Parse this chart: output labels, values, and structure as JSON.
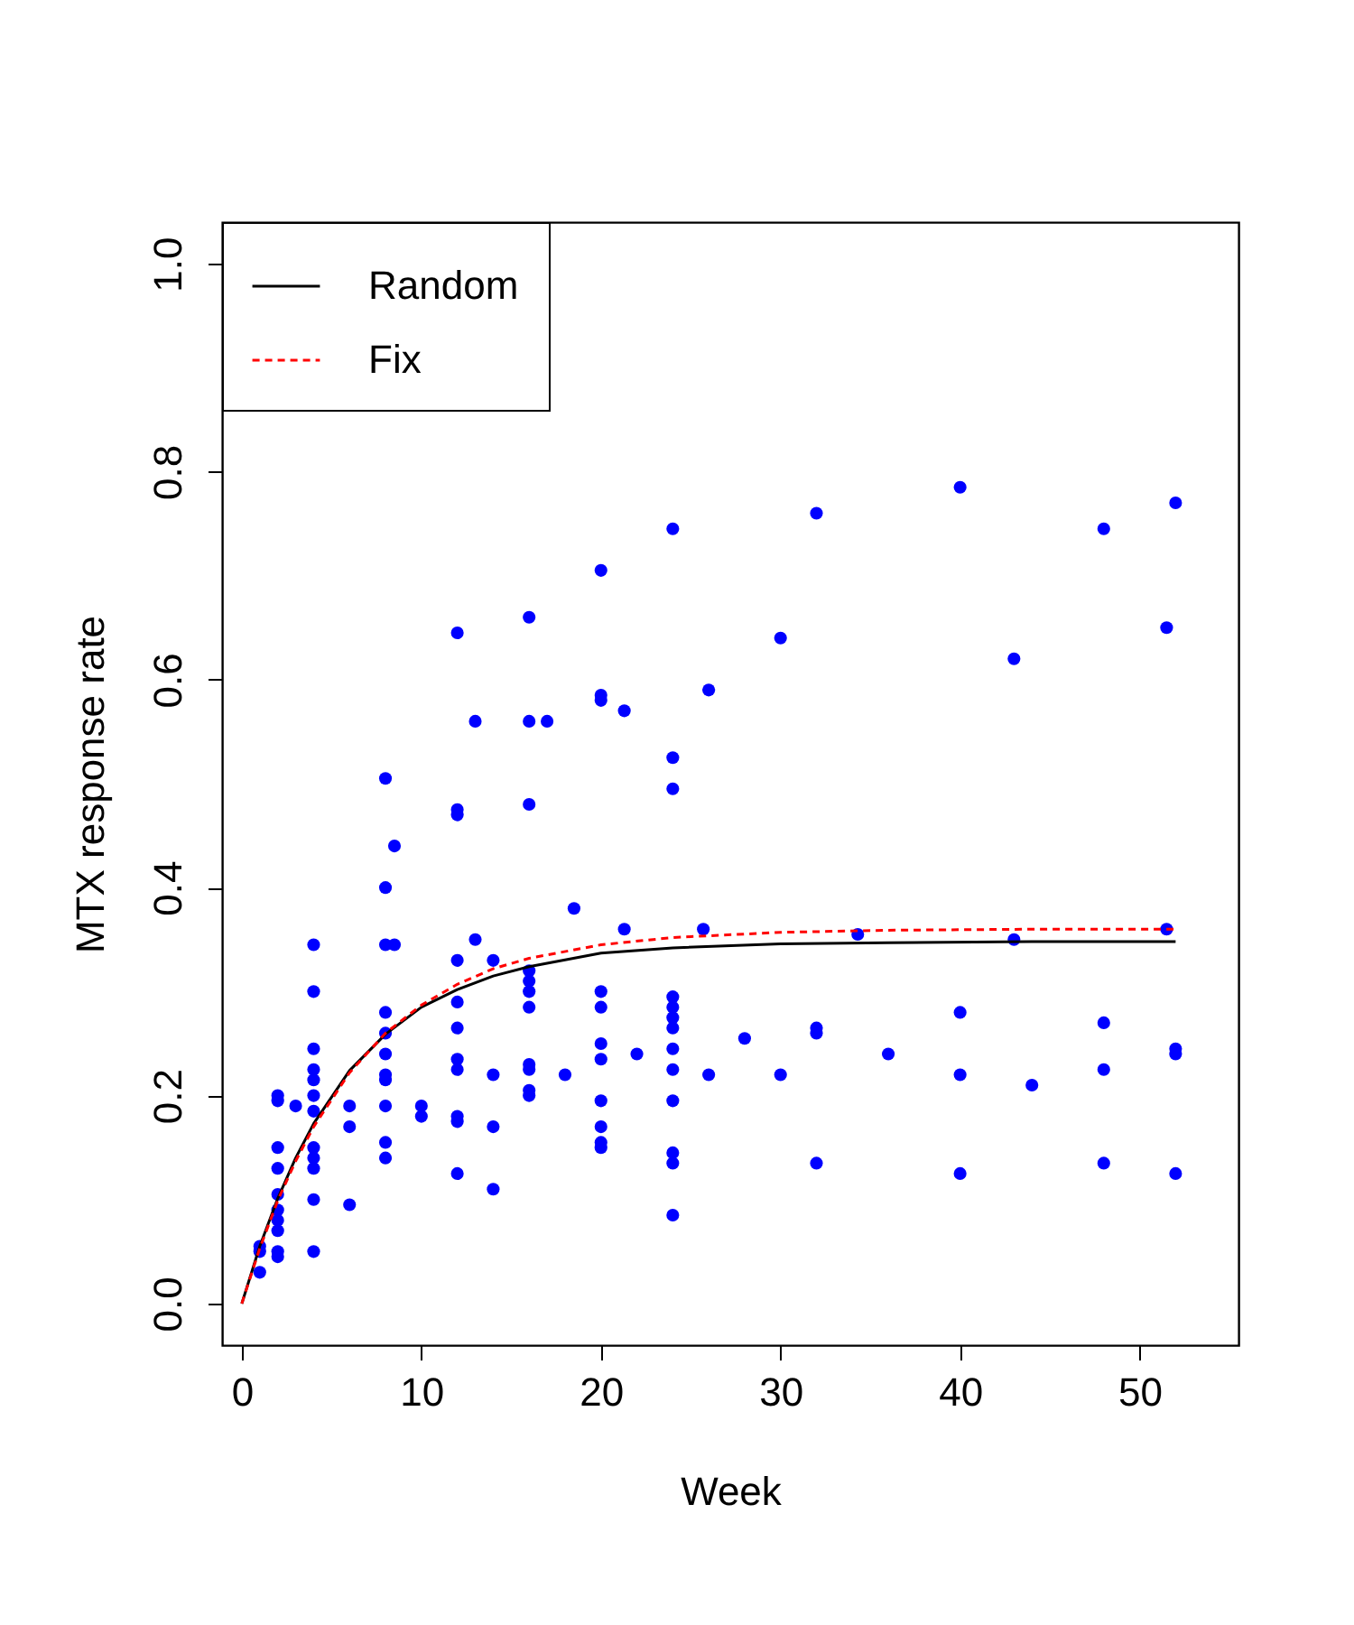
{
  "chart_data": {
    "type": "scatter",
    "xlabel": "Week",
    "ylabel": "MTX response rate",
    "xlim": [
      -1.1,
      55.5
    ],
    "ylim": [
      -0.04,
      1.04
    ],
    "xticks": [
      0,
      10,
      20,
      30,
      40,
      50
    ],
    "yticks": [
      {
        "value": 0,
        "label": "0.0"
      },
      {
        "value": 0.2,
        "label": "0.2"
      },
      {
        "value": 0.4,
        "label": "0.4"
      },
      {
        "value": 0.6,
        "label": "0.6"
      },
      {
        "value": 0.8,
        "label": "0.8"
      },
      {
        "value": 1,
        "label": "1.0"
      }
    ],
    "grid": false,
    "legend": "top left",
    "series": [
      {
        "marker": "circle",
        "color": "#0000ff",
        "x": [
          1,
          1,
          1,
          2,
          2,
          2,
          2,
          2,
          2,
          2,
          2,
          2,
          2,
          3,
          4,
          4,
          4,
          4,
          4,
          4,
          4,
          4,
          4,
          4,
          4,
          4,
          6,
          6,
          6,
          8,
          8,
          8,
          8,
          8,
          8,
          8,
          8,
          8,
          8,
          8,
          8.5,
          8.5,
          10,
          10,
          12,
          12,
          12,
          12,
          12,
          12,
          12,
          12,
          12,
          12,
          12,
          13,
          13,
          14,
          14,
          14,
          14,
          16,
          16,
          16,
          16,
          16,
          16,
          16,
          16,
          16,
          16,
          16,
          17,
          18,
          18.5,
          20,
          20,
          20,
          20,
          20,
          20,
          20,
          20,
          20,
          20,
          20,
          21.3,
          21.3,
          22,
          24,
          24,
          24,
          24,
          24,
          24,
          24,
          24,
          24,
          24,
          24,
          24,
          24,
          25.7,
          26,
          26,
          28,
          30,
          30,
          32,
          32,
          32,
          32,
          34.3,
          36,
          40,
          40,
          40,
          40,
          43,
          43,
          44,
          48,
          48,
          48,
          48,
          51.5,
          51.5,
          52,
          52,
          52,
          52
        ],
        "values": [
          0.055,
          0.05,
          0.03,
          0.2,
          0.195,
          0.15,
          0.13,
          0.105,
          0.09,
          0.08,
          0.07,
          0.05,
          0.045,
          0.19,
          0.345,
          0.3,
          0.245,
          0.225,
          0.215,
          0.2,
          0.185,
          0.15,
          0.14,
          0.13,
          0.1,
          0.05,
          0.19,
          0.17,
          0.095,
          0.505,
          0.4,
          0.345,
          0.28,
          0.26,
          0.24,
          0.22,
          0.215,
          0.19,
          0.155,
          0.14,
          0.44,
          0.345,
          0.19,
          0.18,
          0.645,
          0.475,
          0.47,
          0.33,
          0.29,
          0.265,
          0.235,
          0.225,
          0.18,
          0.175,
          0.125,
          0.56,
          0.35,
          0.33,
          0.22,
          0.17,
          0.11,
          0.66,
          0.56,
          0.48,
          0.32,
          0.31,
          0.3,
          0.285,
          0.23,
          0.225,
          0.205,
          0.2,
          0.56,
          0.22,
          0.38,
          0.705,
          0.585,
          0.58,
          0.3,
          0.285,
          0.25,
          0.235,
          0.195,
          0.17,
          0.155,
          0.15,
          0.57,
          0.36,
          0.24,
          0.745,
          0.525,
          0.495,
          0.295,
          0.285,
          0.275,
          0.265,
          0.245,
          0.225,
          0.195,
          0.145,
          0.135,
          0.085,
          0.36,
          0.59,
          0.22,
          0.255,
          0.64,
          0.22,
          0.76,
          0.265,
          0.26,
          0.135,
          0.355,
          0.24,
          0.785,
          0.28,
          0.22,
          0.125,
          0.62,
          0.35,
          0.21,
          0.745,
          0.27,
          0.225,
          0.135,
          0.65,
          0.36,
          0.77,
          0.245,
          0.24,
          0.125
        ]
      },
      {
        "type": "line",
        "name": "Random",
        "color": "#000000",
        "line_style": "solid",
        "marker": "none",
        "x": [
          0,
          1,
          2,
          3,
          4,
          6,
          8,
          10,
          12,
          14,
          16,
          20,
          24,
          30,
          36,
          44,
          52
        ],
        "values": [
          0,
          0.055,
          0.101,
          0.14,
          0.173,
          0.224,
          0.259,
          0.285,
          0.302,
          0.315,
          0.324,
          0.337,
          0.342,
          0.346,
          0.347,
          0.348,
          0.348
        ]
      },
      {
        "type": "line",
        "name": "Fix",
        "color": "#ff0000",
        "line_style": "dashed",
        "marker": "none",
        "x": [
          0,
          1,
          2,
          3,
          4,
          6,
          8,
          10,
          12,
          14,
          16,
          20,
          24,
          30,
          36,
          44,
          52
        ],
        "values": [
          0,
          0.053,
          0.099,
          0.137,
          0.17,
          0.222,
          0.26,
          0.287,
          0.307,
          0.322,
          0.332,
          0.345,
          0.352,
          0.357,
          0.359,
          0.36,
          0.36
        ]
      }
    ]
  }
}
